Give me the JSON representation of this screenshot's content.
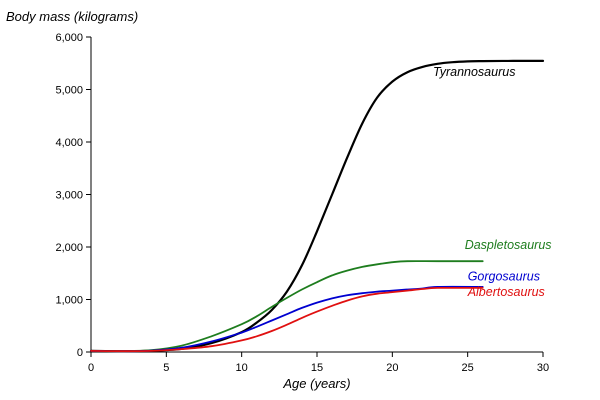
{
  "chart_data": {
    "type": "line",
    "title": "",
    "xlabel": "Age (years)",
    "ylabel": "Body mass (kilograms)",
    "xlim": [
      0,
      30
    ],
    "ylim": [
      0,
      6000
    ],
    "x_ticks": [
      0,
      5,
      10,
      15,
      20,
      25,
      30
    ],
    "x_tick_labels": [
      "0",
      "5",
      "10",
      "15",
      "20",
      "25",
      "30"
    ],
    "y_ticks": [
      0,
      1000,
      2000,
      3000,
      4000,
      5000,
      6000
    ],
    "y_tick_labels": [
      "0",
      "1,000",
      "2,000",
      "3,000",
      "4,000",
      "5,000",
      "6,000"
    ],
    "grid": false,
    "legend": "none (series labelled directly at line ends)",
    "series": [
      {
        "name": "Tyrannosaurus",
        "color": "#000000",
        "x": [
          0,
          2,
          4,
          6,
          8,
          10,
          11,
          12,
          13,
          14,
          15,
          16,
          17,
          18,
          19,
          20,
          21,
          22,
          23,
          24,
          25,
          26,
          28,
          30
        ],
        "y": [
          20,
          15,
          25,
          60,
          170,
          380,
          560,
          800,
          1150,
          1650,
          2300,
          3000,
          3700,
          4350,
          4850,
          5150,
          5330,
          5430,
          5490,
          5520,
          5535,
          5540,
          5545,
          5545
        ]
      },
      {
        "name": "Daspletosaurus",
        "color": "#1e7d1e",
        "x": [
          0,
          2,
          4,
          6,
          8,
          10,
          11,
          12,
          13,
          14,
          15,
          16,
          17,
          18,
          19,
          20,
          21,
          23,
          26
        ],
        "y": [
          20,
          15,
          35,
          120,
          300,
          530,
          680,
          860,
          1030,
          1190,
          1330,
          1460,
          1550,
          1620,
          1670,
          1710,
          1730,
          1730,
          1730
        ]
      },
      {
        "name": "Gorgosaurus",
        "color": "#0000d0",
        "x": [
          0,
          2,
          4,
          6,
          8,
          10,
          11,
          12,
          13,
          14,
          15,
          16,
          17,
          18,
          19,
          20,
          21,
          22,
          23,
          26
        ],
        "y": [
          20,
          15,
          25,
          80,
          200,
          370,
          480,
          600,
          720,
          840,
          940,
          1020,
          1080,
          1120,
          1150,
          1170,
          1190,
          1210,
          1240,
          1240
        ]
      },
      {
        "name": "Albertosaurus",
        "color": "#e01010",
        "x": [
          0,
          2,
          4,
          6,
          8,
          10,
          11,
          12,
          13,
          14,
          15,
          16,
          17,
          18,
          19,
          20,
          21,
          22,
          23,
          26
        ],
        "y": [
          20,
          15,
          20,
          55,
          110,
          220,
          300,
          400,
          520,
          650,
          770,
          880,
          980,
          1060,
          1110,
          1140,
          1170,
          1200,
          1220,
          1220
        ]
      }
    ]
  }
}
